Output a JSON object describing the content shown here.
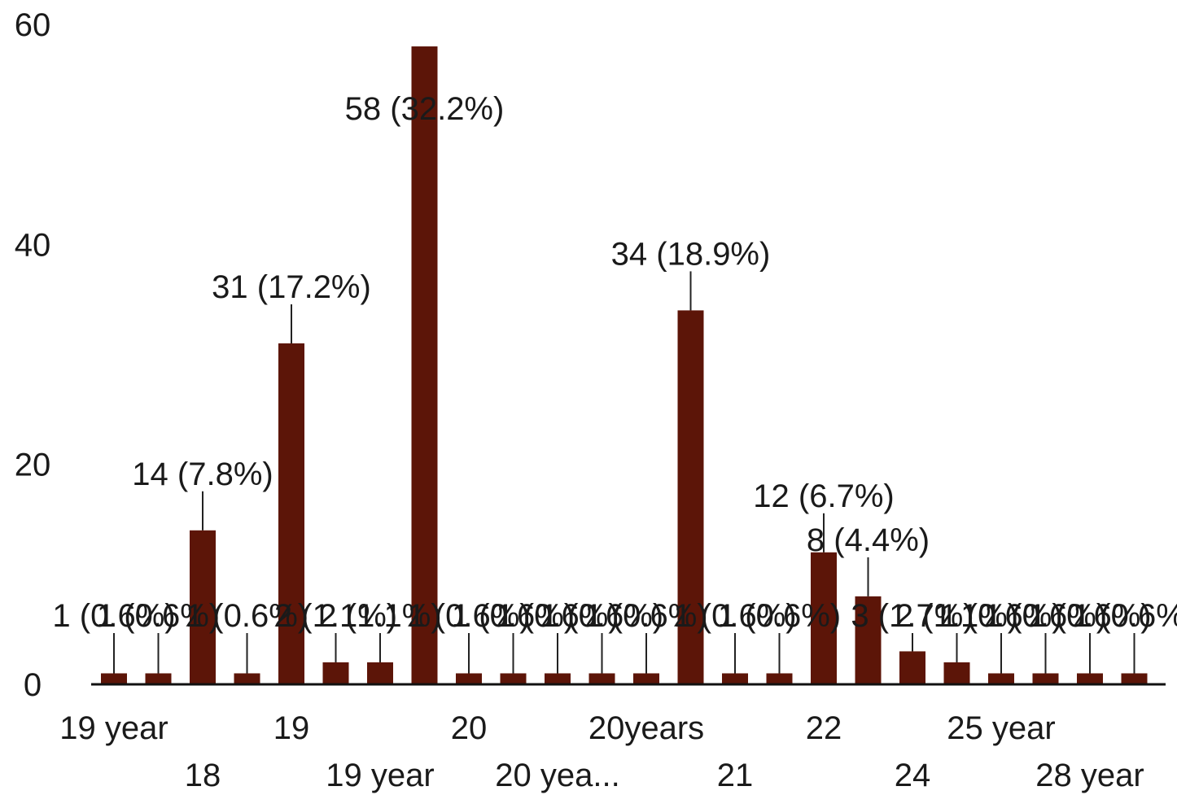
{
  "chart_data": {
    "type": "bar",
    "title": "",
    "xlabel": "",
    "ylabel": "",
    "ylim": [
      0,
      60
    ],
    "yticks": [
      0,
      20,
      40,
      60
    ],
    "grid": false,
    "legend": "none",
    "bar_color": "#5c1508",
    "categories": [
      "19 year",
      "",
      "18",
      "",
      "19",
      "",
      "19 year",
      "",
      "20",
      "",
      "20 yea...",
      "",
      "20years",
      "",
      "21",
      "",
      "22",
      "",
      "24",
      "",
      "25 year",
      "",
      "28 year",
      ""
    ],
    "values": [
      1,
      1,
      14,
      1,
      31,
      2,
      2,
      58,
      1,
      1,
      1,
      1,
      1,
      34,
      1,
      1,
      12,
      8,
      3,
      2,
      1,
      1,
      1,
      1
    ],
    "labels": [
      "1 (0.6%)",
      "1 (0.6%)",
      "14 (7.8%)",
      "1 (0.6%)",
      "31 (17.2%)",
      "2 (1.1%)",
      "2 (1.1%)",
      "58 (32.2%)",
      "1 (0.6%)",
      "1 (0.6%)",
      "1 (0.6%)",
      "1 (0.6%)",
      "1 (0.6%)",
      "34 (18.9%)",
      "1 (0.6%)",
      "1 (0.6%)",
      "12 (6.7%)",
      "8 (4.4%)",
      "3 (1.7%)",
      "2 (1.1%)",
      "1 (0.6%)",
      "1 (0.6%)",
      "1 (0.6%)",
      "1 (0.6%)"
    ]
  }
}
